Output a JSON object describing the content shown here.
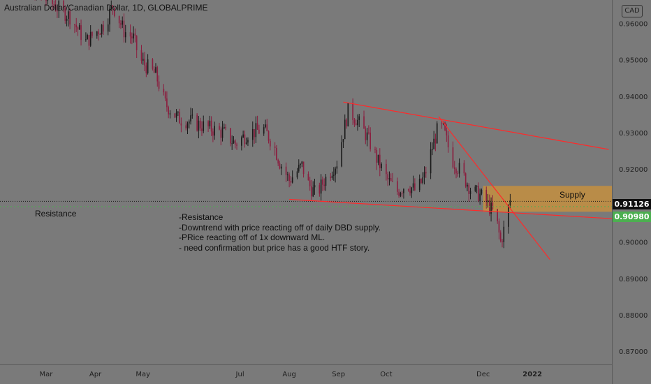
{
  "title": "Australian Dollar/Canadian Dollar, 1D, GLOBALPRIME",
  "currency": "CAD",
  "colors": {
    "background": "#7a7a7a",
    "bull": "#1a1a1a",
    "bear": "#8b1e3f",
    "trendline": "#ff2a2a",
    "supply_zone": "#c9913c",
    "resistance_line": "#4caf50",
    "last_price_line": "#1a1a1a"
  },
  "annotations": {
    "resistance_label": "Resistance",
    "supply_label": "Supply",
    "note_lines": [
      "-Resistance",
      "-Downtrend with price reacting off of daily DBD supply.",
      "-PRice reacting off of 1x downward ML.",
      "- need confirmation but price has a good HTF story."
    ]
  },
  "price_tags": {
    "last": "0.91126",
    "resistance": "0.90980"
  },
  "chart_data": {
    "type": "candlestick",
    "title": "Australian Dollar/Canadian Dollar, 1D, GLOBALPRIME",
    "y_tick_labels": [
      "0.96000",
      "0.95000",
      "0.94000",
      "0.93000",
      "0.92000",
      "0.91000",
      "0.90000",
      "0.89000",
      "0.88000",
      "0.87000"
    ],
    "y_ticks": [
      0.96,
      0.95,
      0.94,
      0.93,
      0.92,
      0.91,
      0.9,
      0.89,
      0.88,
      0.87
    ],
    "ylim": [
      0.8665,
      0.9665
    ],
    "x_ticks": [
      {
        "label": "Mar",
        "day": 3
      },
      {
        "label": "Apr",
        "day": 34
      },
      {
        "label": "May",
        "day": 64
      },
      {
        "label": "Jul",
        "day": 125
      },
      {
        "label": "Aug",
        "day": 156
      },
      {
        "label": "Sep",
        "day": 187
      },
      {
        "label": "Oct",
        "day": 217
      },
      {
        "label": "Dec",
        "day": 278
      },
      {
        "label": "2022",
        "day": 309,
        "bold": true
      }
    ],
    "xlim": [
      -26,
      359
    ],
    "trend": [
      [
        -24,
        0.975
      ],
      [
        18,
        0.962
      ],
      [
        28,
        0.955
      ],
      [
        40,
        0.96
      ],
      [
        45,
        0.965
      ],
      [
        52,
        0.958
      ],
      [
        58,
        0.956
      ],
      [
        62,
        0.95
      ],
      [
        72,
        0.946
      ],
      [
        78,
        0.938
      ],
      [
        86,
        0.934
      ],
      [
        95,
        0.933
      ],
      [
        108,
        0.931
      ],
      [
        115,
        0.93
      ],
      [
        122,
        0.927
      ],
      [
        130,
        0.93
      ],
      [
        140,
        0.931
      ],
      [
        146,
        0.927
      ],
      [
        150,
        0.922
      ],
      [
        156,
        0.917
      ],
      [
        164,
        0.921
      ],
      [
        168,
        0.916
      ],
      [
        173,
        0.913
      ],
      [
        178,
        0.917
      ],
      [
        186,
        0.922
      ],
      [
        190,
        0.93
      ],
      [
        193,
        0.936
      ],
      [
        198,
        0.934
      ],
      [
        205,
        0.929
      ],
      [
        212,
        0.922
      ],
      [
        218,
        0.917
      ],
      [
        224,
        0.914
      ],
      [
        230,
        0.916
      ],
      [
        236,
        0.914
      ],
      [
        241,
        0.918
      ],
      [
        246,
        0.926
      ],
      [
        250,
        0.932
      ],
      [
        253,
        0.931
      ],
      [
        258,
        0.923
      ],
      [
        263,
        0.92
      ],
      [
        267,
        0.917
      ],
      [
        271,
        0.914
      ],
      [
        276,
        0.913
      ],
      [
        280,
        0.911
      ],
      [
        286,
        0.907
      ],
      [
        289,
        0.9
      ],
      [
        292,
        0.905
      ],
      [
        295,
        0.9115
      ]
    ],
    "supply_zone": {
      "x1": 278,
      "x2": 359,
      "y_top": 0.9155,
      "y_bottom": 0.9084
    },
    "resistance_level": 0.9098,
    "last_price": 0.91126,
    "trendlines": [
      {
        "x1": 190,
        "y1": 0.9385,
        "x2": 357,
        "y2": 0.9255
      },
      {
        "x1": 156,
        "y1": 0.9118,
        "x2": 359,
        "y2": 0.9065
      },
      {
        "x1": 250,
        "y1": 0.9345,
        "x2": 320,
        "y2": 0.8953
      }
    ]
  }
}
